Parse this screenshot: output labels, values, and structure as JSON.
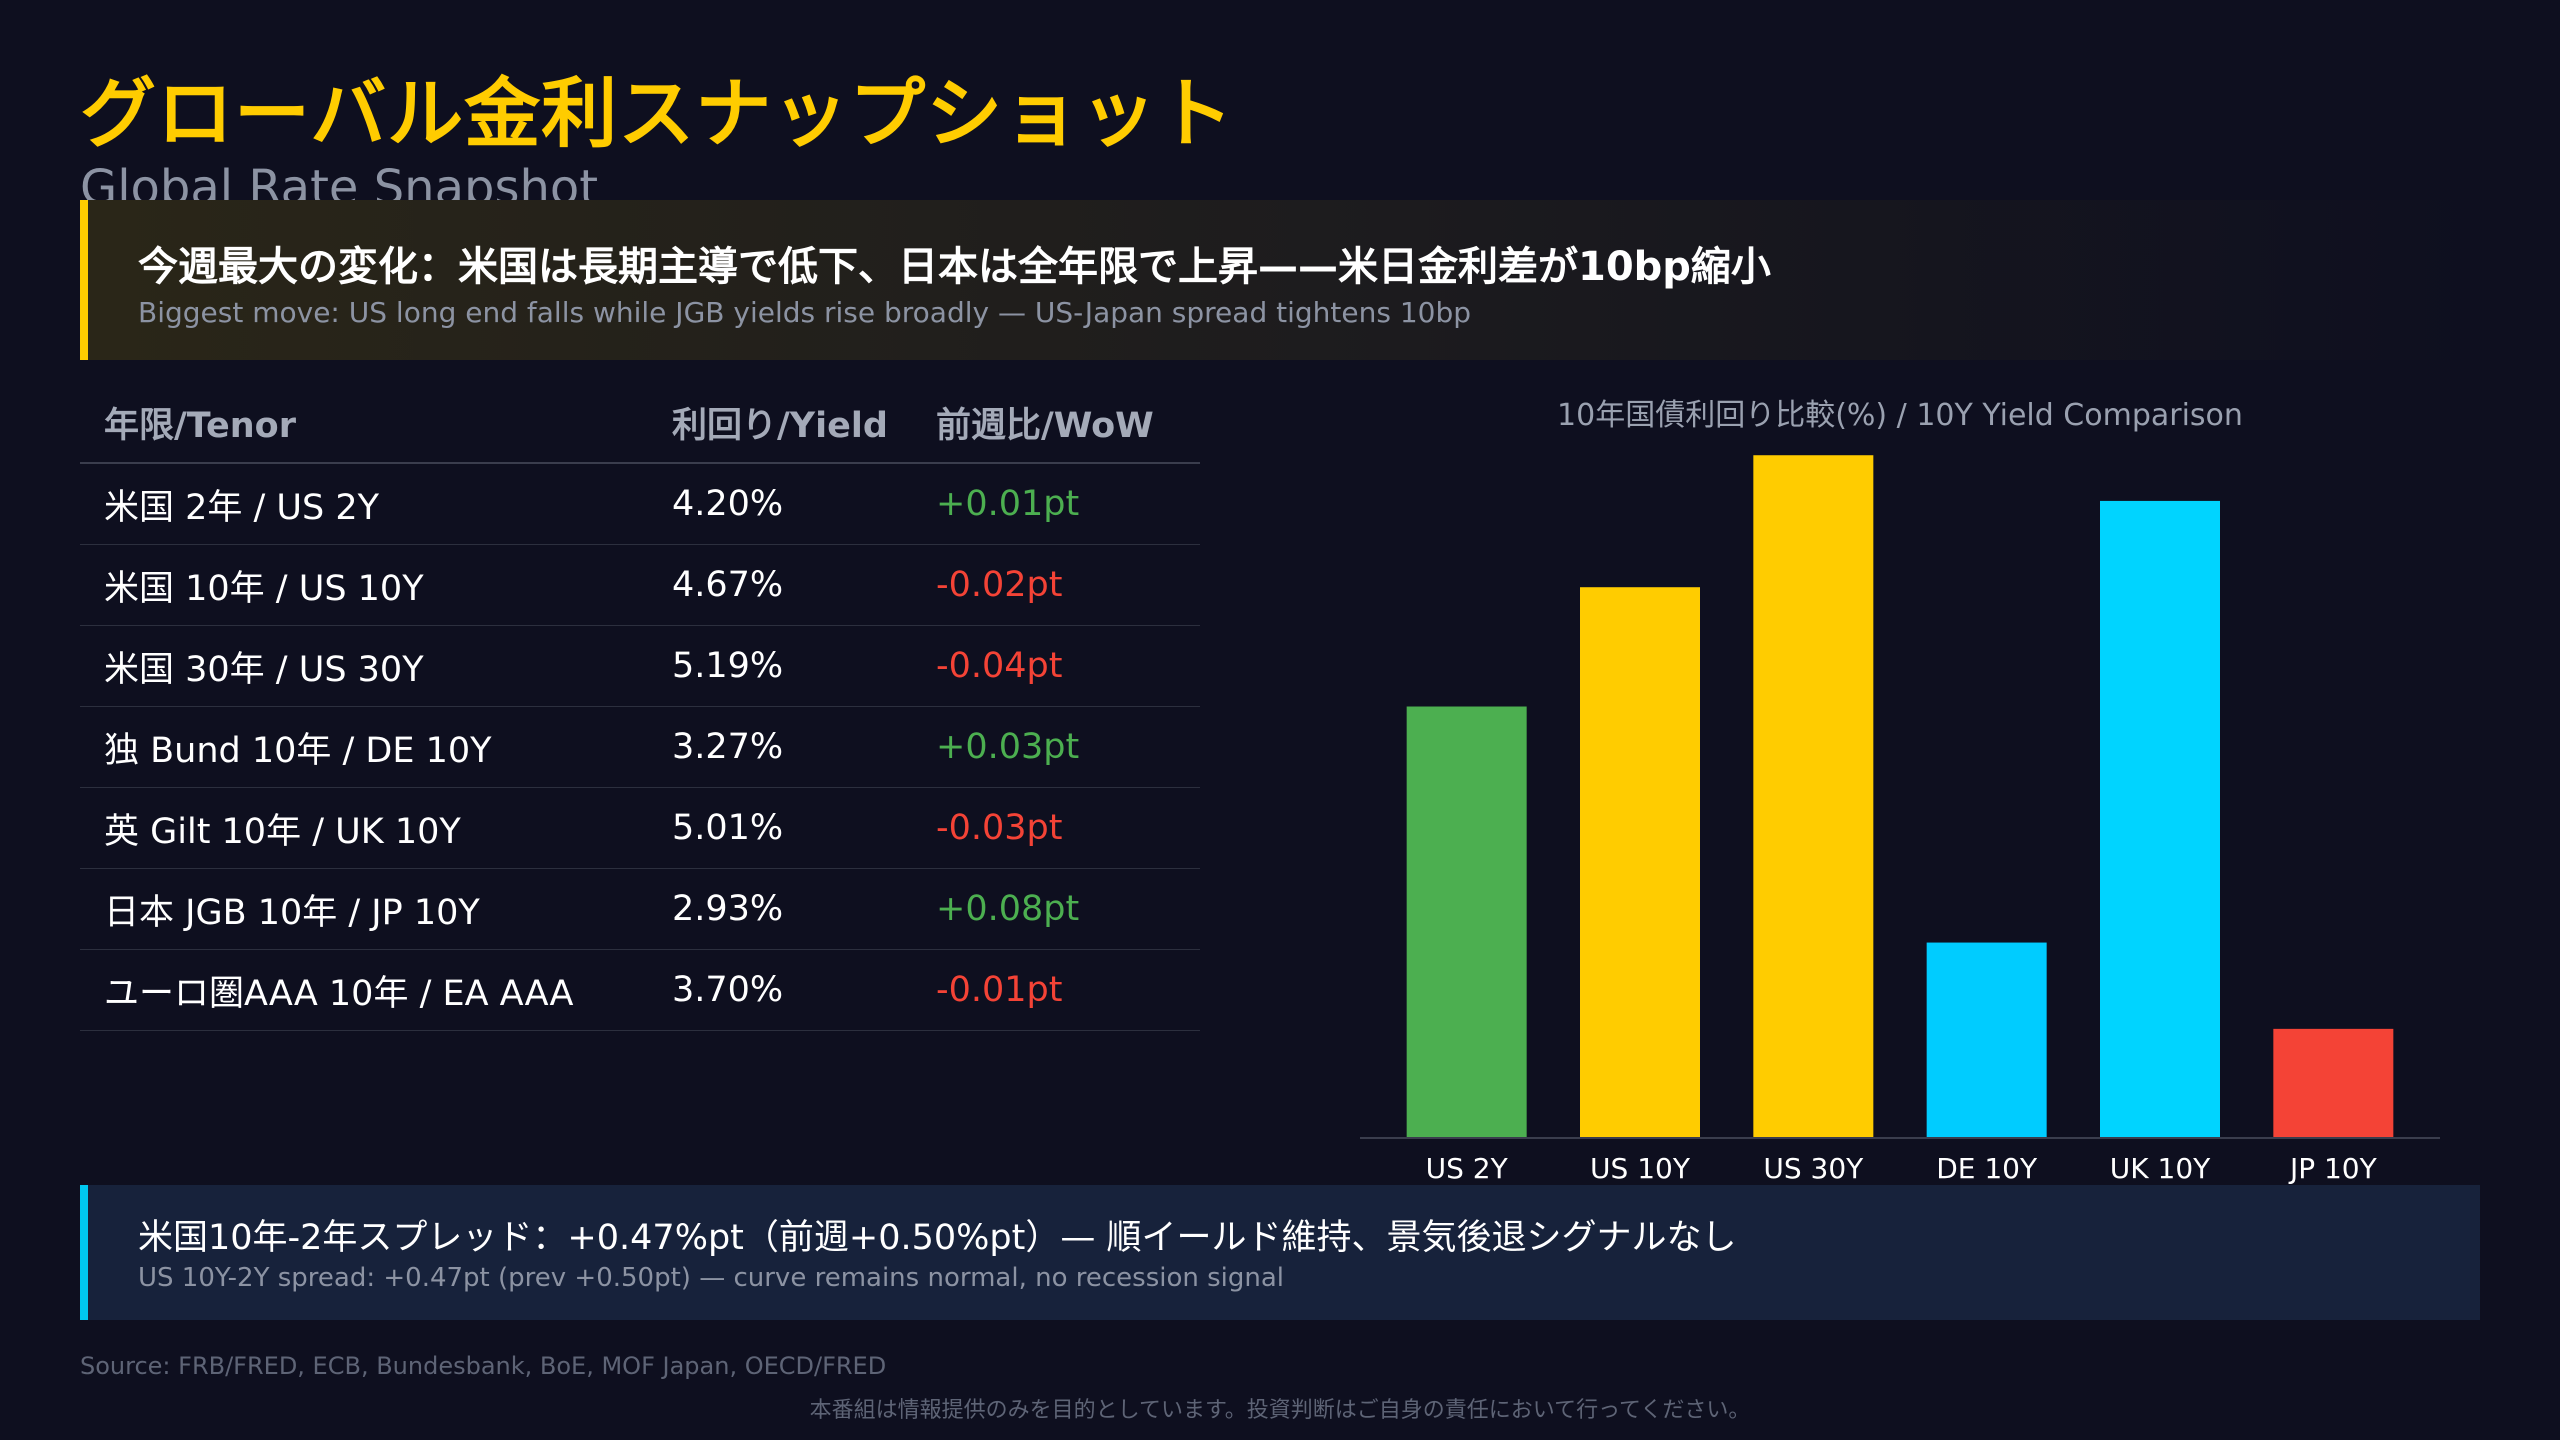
{
  "title": {
    "ja": "グローバル金利スナップショット",
    "en": "Global Rate Snapshot"
  },
  "highlight": {
    "ja": "今週最大の変化：米国は長期主導で低下、日本は全年限で上昇——米日金利差が10bp縮小",
    "en": "Biggest move: US long end falls while JGB yields rise broadly — US-Japan spread tightens 10bp",
    "accent": "#ffcc00"
  },
  "table": {
    "headers": [
      "年限/Tenor",
      "利回り/Yield",
      "前週比/WoW"
    ],
    "rows": [
      {
        "tenor": "米国 2年 / US 2Y",
        "yield": "4.20%",
        "wow": "+0.01pt",
        "dir": "pos"
      },
      {
        "tenor": "米国 10年 / US 10Y",
        "yield": "4.67%",
        "wow": "-0.02pt",
        "dir": "neg"
      },
      {
        "tenor": "米国 30年 / US 30Y",
        "yield": "5.19%",
        "wow": "-0.04pt",
        "dir": "neg"
      },
      {
        "tenor": "独 Bund 10年 / DE 10Y",
        "yield": "3.27%",
        "wow": "+0.03pt",
        "dir": "pos"
      },
      {
        "tenor": "英 Gilt 10年 / UK 10Y",
        "yield": "5.01%",
        "wow": "-0.03pt",
        "dir": "neg"
      },
      {
        "tenor": "日本 JGB 10年 / JP 10Y",
        "yield": "2.93%",
        "wow": "+0.08pt",
        "dir": "pos"
      },
      {
        "tenor": "ユーロ圏AAA 10年 / EA AAA",
        "yield": "3.70%",
        "wow": "-0.01pt",
        "dir": "neg"
      }
    ],
    "colors": {
      "positive": "#4caf50",
      "negative": "#f44336"
    }
  },
  "chart_data": {
    "type": "bar",
    "title": "10年国債利回り比較(%) / 10Y Yield Comparison",
    "categories": [
      "US 2Y",
      "US 10Y",
      "US 30Y",
      "DE 10Y",
      "UK 10Y",
      "JP 10Y"
    ],
    "values": [
      4.2,
      4.67,
      5.19,
      3.27,
      5.01,
      2.93
    ],
    "bar_colors": [
      "#4caf50",
      "#ffcc00",
      "#ffcc00",
      "#00ccff",
      "#00d4ff",
      "#f44336"
    ],
    "ylim": [
      2.5,
      5.25
    ],
    "xlabel": "",
    "ylabel": "",
    "grid": false,
    "legend": "none"
  },
  "spread": {
    "ja": "米国10年-2年スプレッド：+0.47%pt（前週+0.50%pt）— 順イールド維持、景気後退シグナルなし",
    "en": "US 10Y-2Y spread: +0.47pt (prev +0.50pt) — curve remains normal, no recession signal",
    "accent": "#00c8f0"
  },
  "footer": {
    "source": "Source: FRB/FRED, ECB, Bundesbank, BoE, MOF Japan, OECD/FRED",
    "disclaimer": "本番組は情報提供のみを目的としています。投資判断はご自身の責任において行ってください。"
  }
}
